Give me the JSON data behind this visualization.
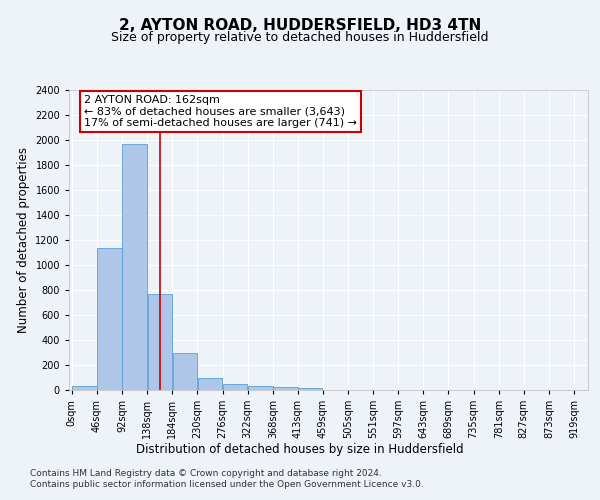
{
  "title": "2, AYTON ROAD, HUDDERSFIELD, HD3 4TN",
  "subtitle": "Size of property relative to detached houses in Huddersfield",
  "xlabel": "Distribution of detached houses by size in Huddersfield",
  "ylabel": "Number of detached properties",
  "bin_edges": [
    0,
    46,
    92,
    138,
    184,
    230,
    276,
    322,
    368,
    413,
    459,
    505,
    551,
    597,
    643,
    689,
    735,
    781,
    827,
    873,
    919
  ],
  "bar_heights": [
    35,
    1140,
    1970,
    770,
    300,
    100,
    45,
    35,
    25,
    15,
    0,
    0,
    0,
    0,
    0,
    0,
    0,
    0,
    0,
    0
  ],
  "bar_color": "#aec6e8",
  "bar_edge_color": "#5a9fd4",
  "property_size": 162,
  "red_line_color": "#cc0000",
  "annotation_line1": "2 AYTON ROAD: 162sqm",
  "annotation_line2": "← 83% of detached houses are smaller (3,643)",
  "annotation_line3": "17% of semi-detached houses are larger (741) →",
  "annotation_box_color": "#ffffff",
  "annotation_box_edge_color": "#cc0000",
  "ylim": [
    0,
    2400
  ],
  "yticks": [
    0,
    200,
    400,
    600,
    800,
    1000,
    1200,
    1400,
    1600,
    1800,
    2000,
    2200,
    2400
  ],
  "footer_line1": "Contains HM Land Registry data © Crown copyright and database right 2024.",
  "footer_line2": "Contains public sector information licensed under the Open Government Licence v3.0.",
  "bg_color": "#eef2f9",
  "plot_bg_color": "#eef2f9",
  "grid_color": "#ffffff",
  "title_fontsize": 11,
  "subtitle_fontsize": 9,
  "label_fontsize": 8.5,
  "tick_fontsize": 7,
  "annot_fontsize": 8,
  "footer_fontsize": 6.5
}
